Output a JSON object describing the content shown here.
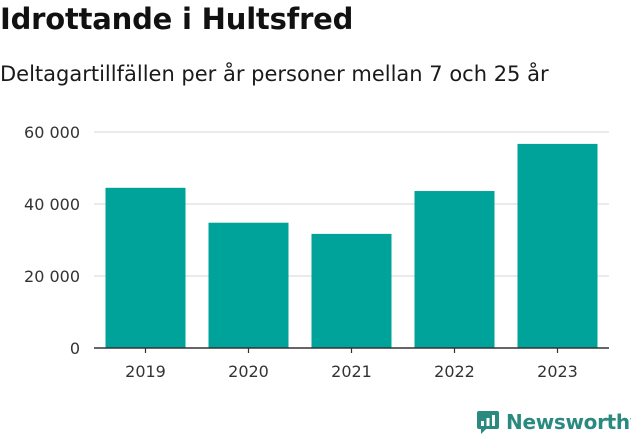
{
  "title": "Idrottande i Hultsfred",
  "subtitle": "Deltagartillfällen per år personer mellan 7 och 25 år",
  "brand": {
    "name": "Newsworthy",
    "icon": "newsworthy-logo-icon"
  },
  "colors": {
    "bar": "#00a39a",
    "grid": "#dddddd",
    "axis": "#333333",
    "text": "#333333",
    "brand": "#2a8a7f"
  },
  "chart_data": {
    "type": "bar",
    "title": "Idrottande i Hultsfred",
    "subtitle": "Deltagartillfällen per år personer mellan 7 och 25 år",
    "xlabel": "",
    "ylabel": "",
    "categories": [
      "2019",
      "2020",
      "2021",
      "2022",
      "2023"
    ],
    "values": [
      44500,
      34800,
      31700,
      43600,
      56700
    ],
    "ylim": [
      0,
      60000
    ],
    "yticks": [
      0,
      20000,
      40000,
      60000
    ],
    "ytick_labels": [
      "0",
      "20 000",
      "40 000",
      "60 000"
    ],
    "grid": true,
    "legend": "none"
  }
}
